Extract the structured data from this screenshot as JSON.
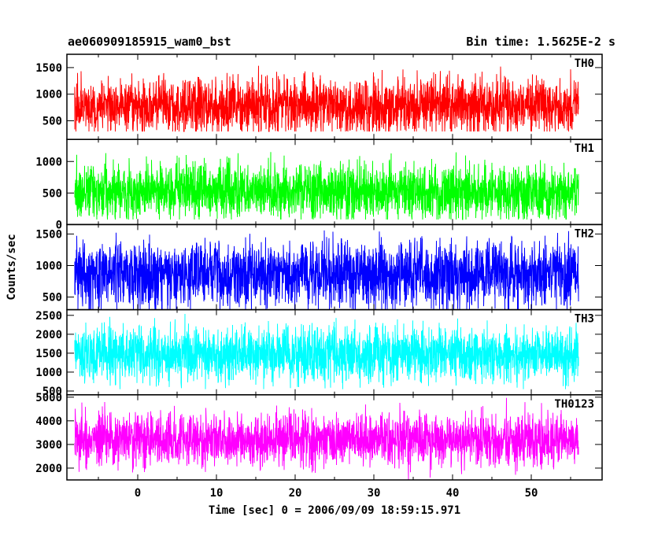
{
  "header": {
    "obs_id": "ae060909185915_wam0_bst",
    "bin_time": "Bin time: 1.5625E-2 s"
  },
  "chart_data": {
    "type": "line",
    "title": "ae060909185915_wam0_bst",
    "subtitle": "Bin time: 1.5625E-2 s",
    "xlabel": "Time [sec] 0 = 2006/09/09 18:59:15.971",
    "ylabel": "Counts/sec",
    "xlim": [
      -9,
      59
    ],
    "x_ticks": [
      0,
      10,
      20,
      30,
      40,
      50
    ],
    "x_range_data": [
      -8.0,
      56.0
    ],
    "grid": false,
    "panels": [
      {
        "name": "TH0",
        "color": "#ff0000",
        "ylim": [
          150,
          1750
        ],
        "y_ticks": [
          500,
          1000,
          1500
        ],
        "mean": 770,
        "spread": 300,
        "min": 300,
        "max": 1750
      },
      {
        "name": "TH1",
        "color": "#00ff00",
        "ylim": [
          0,
          1350
        ],
        "y_ticks": [
          0,
          500,
          1000
        ],
        "mean": 520,
        "spread": 240,
        "min": 80,
        "max": 1350
      },
      {
        "name": "TH2",
        "color": "#0000ff",
        "ylim": [
          300,
          1650
        ],
        "y_ticks": [
          500,
          1000,
          1500
        ],
        "mean": 860,
        "spread": 290,
        "min": 300,
        "max": 1650
      },
      {
        "name": "TH3",
        "color": "#00ffff",
        "ylim": [
          400,
          2650
        ],
        "y_ticks": [
          500,
          1000,
          1500,
          2000,
          2500
        ],
        "mean": 1480,
        "spread": 400,
        "min": 550,
        "max": 2650
      },
      {
        "name": "TH0123",
        "color": "#ff00ff",
        "ylim": [
          1500,
          5100
        ],
        "y_ticks": [
          2000,
          3000,
          4000,
          5000
        ],
        "mean": 3200,
        "spread": 620,
        "min": 1500,
        "max": 5100
      }
    ]
  }
}
